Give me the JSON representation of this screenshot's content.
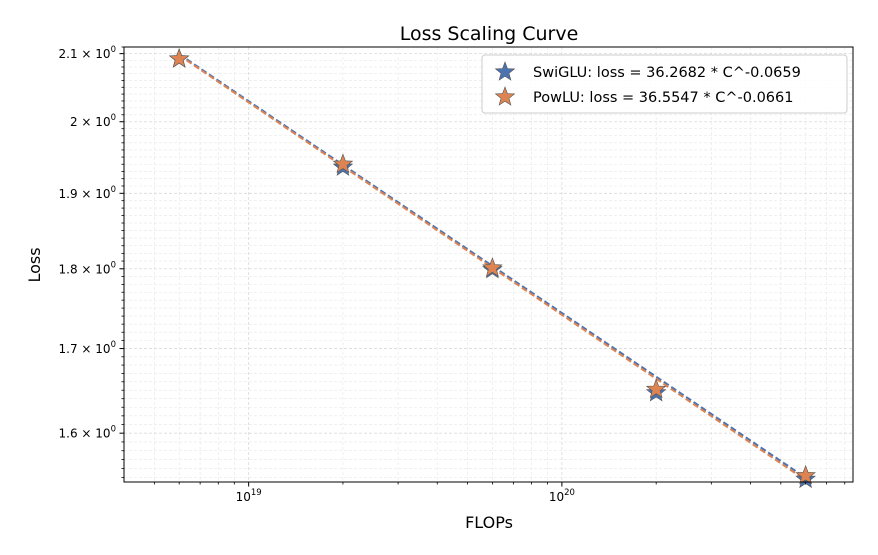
{
  "chart_data": {
    "type": "scatter",
    "title": "Loss Scaling Curve",
    "xlabel": "FLOPs",
    "ylabel": "Loss",
    "x_scale": "log",
    "y_scale": "log",
    "xlim": [
      4e+18,
      8.5e+20
    ],
    "ylim": [
      1.545,
      2.11
    ],
    "grid": true,
    "legend_position": "top-right",
    "x_ticks": [
      {
        "value": 1e+19,
        "base": "10",
        "exp": "19"
      },
      {
        "value": 1e+20,
        "base": "10",
        "exp": "20"
      }
    ],
    "y_ticks": [
      {
        "value": 1.6,
        "mant": "1.6",
        "base": "10",
        "exp": "0"
      },
      {
        "value": 1.7,
        "mant": "1.7",
        "base": "10",
        "exp": "0"
      },
      {
        "value": 1.8,
        "mant": "1.8",
        "base": "10",
        "exp": "0"
      },
      {
        "value": 1.9,
        "mant": "1.9",
        "base": "10",
        "exp": "0"
      },
      {
        "value": 2.0,
        "mant": "2",
        "base": "10",
        "exp": "0"
      },
      {
        "value": 2.1,
        "mant": "2.1",
        "base": "10",
        "exp": "0"
      }
    ],
    "series": [
      {
        "name": "SwiGLU: loss = 36.2682 * C^-0.0659",
        "color": "#4c72b0",
        "coef": 36.2682,
        "exponent": -0.0659,
        "x": [
          6e+18,
          2e+19,
          6e+19,
          2e+20,
          6e+20
        ],
        "y": [
          2.092,
          1.936,
          1.799,
          1.647,
          1.548
        ]
      },
      {
        "name": "PowLU: loss = 36.5547 * C^-0.0661",
        "color": "#dd8452",
        "coef": 36.5547,
        "exponent": -0.0661,
        "x": [
          6e+18,
          2e+19,
          6e+19,
          2e+20,
          6e+20
        ],
        "y": [
          2.092,
          1.94,
          1.801,
          1.651,
          1.552
        ]
      }
    ]
  }
}
